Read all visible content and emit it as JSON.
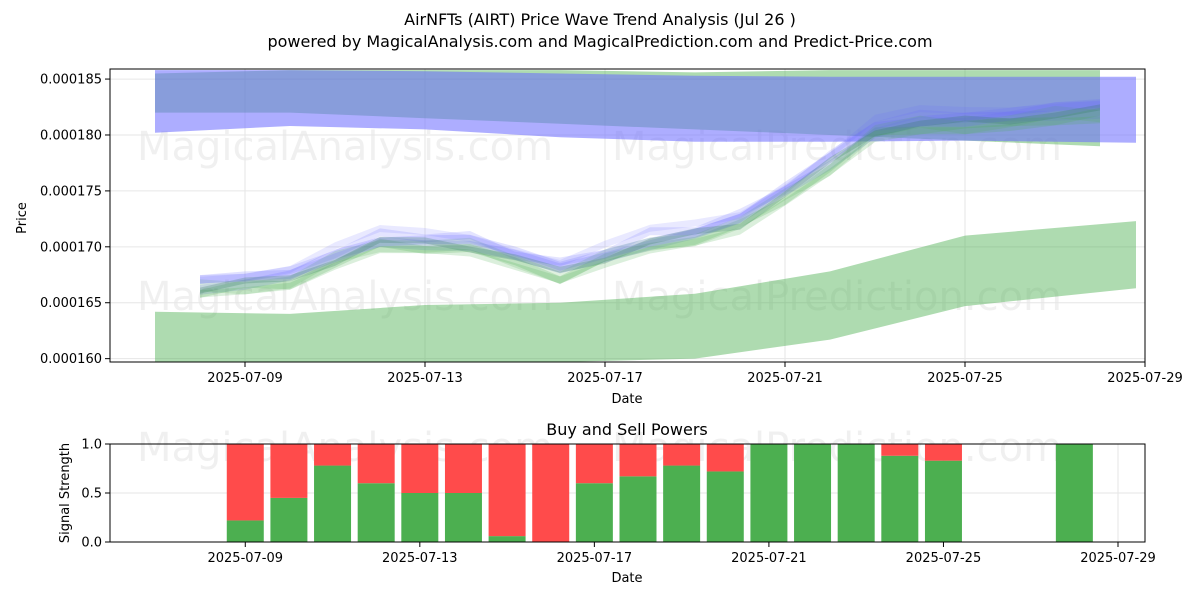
{
  "header": {
    "title": "AirNFTs (AIRT) Price Wave Trend Analysis (Jul 26 )",
    "subtitle": "powered by MagicalAnalysis.com and MagicalPrediction.com and Predict-Price.com"
  },
  "watermarks": [
    "MagicalAnalysis.com",
    "MagicalPrediction.com"
  ],
  "colors": {
    "green_band": "#4caf50",
    "blue_band": "#6a6aff",
    "bands_overlap": "#6f8fc6",
    "buy_bar": "#4caf50",
    "sell_bar": "#ff4b4b",
    "grid": "#e6e6e6"
  },
  "chart_data": [
    {
      "type": "area",
      "title": "",
      "xlabel": "Date",
      "ylabel": "Price",
      "x_range": [
        "2025-07-06",
        "2025-07-29"
      ],
      "ylim": [
        0.0001597,
        0.0001859
      ],
      "x_ticks": [
        "2025-07-09",
        "2025-07-13",
        "2025-07-17",
        "2025-07-21",
        "2025-07-25",
        "2025-07-29"
      ],
      "y_ticks": [
        "0.000160",
        "0.000165",
        "0.000170",
        "0.000175",
        "0.000180",
        "0.000185"
      ],
      "grid": true,
      "series": [
        {
          "kind": "band",
          "color": "green",
          "x": [
            "2025-07-07",
            "2025-07-10",
            "2025-07-13",
            "2025-07-16",
            "2025-07-19",
            "2025-07-22",
            "2025-07-25",
            "2025-07-28"
          ],
          "upper": [
            0.0001855,
            0.0001858,
            0.0001858,
            0.0001858,
            0.0001856,
            0.0001858,
            0.0001858,
            0.0001858
          ],
          "lower": [
            0.000182,
            0.000182,
            0.0001815,
            0.000181,
            0.0001805,
            0.00018,
            0.0001795,
            0.000179
          ]
        },
        {
          "kind": "band",
          "color": "blue",
          "x": [
            "2025-07-07",
            "2025-07-10",
            "2025-07-13",
            "2025-07-16",
            "2025-07-19",
            "2025-07-22",
            "2025-07-25",
            "2025-07-28.8"
          ],
          "upper": [
            0.0001858,
            0.0001858,
            0.0001857,
            0.0001855,
            0.0001853,
            0.0001852,
            0.0001852,
            0.0001852
          ],
          "lower": [
            0.0001802,
            0.0001808,
            0.0001805,
            0.0001798,
            0.0001794,
            0.0001794,
            0.0001795,
            0.0001793
          ]
        },
        {
          "kind": "band",
          "color": "green",
          "x": [
            "2025-07-07",
            "2025-07-10",
            "2025-07-13",
            "2025-07-16",
            "2025-07-19",
            "2025-07-22",
            "2025-07-25",
            "2025-07-28.8"
          ],
          "upper": [
            0.0001642,
            0.000164,
            0.0001648,
            0.000165,
            0.0001658,
            0.0001678,
            0.000171,
            0.0001723
          ],
          "lower": [
            0.0001597,
            0.0001597,
            0.0001597,
            0.0001597,
            0.00016,
            0.0001617,
            0.0001647,
            0.0001663
          ]
        },
        {
          "kind": "price_waves",
          "x": [
            "2025-07-08",
            "2025-07-09",
            "2025-07-10",
            "2025-07-11",
            "2025-07-12",
            "2025-07-13",
            "2025-07-14",
            "2025-07-15",
            "2025-07-16",
            "2025-07-17",
            "2025-07-18",
            "2025-07-19",
            "2025-07-20",
            "2025-07-21",
            "2025-07-22",
            "2025-07-23",
            "2025-07-24",
            "2025-07-25",
            "2025-07-26",
            "2025-07-27",
            "2025-07-28"
          ],
          "values": [
            0.0001665,
            0.0001668,
            0.0001672,
            0.000169,
            0.0001705,
            0.0001705,
            0.0001702,
            0.000169,
            0.0001678,
            0.0001692,
            0.0001705,
            0.0001712,
            0.0001722,
            0.0001748,
            0.0001775,
            0.0001805,
            0.0001812,
            0.0001812,
            0.0001815,
            0.000182,
            0.0001822
          ]
        }
      ]
    },
    {
      "type": "bar",
      "title": "Buy and Sell Powers",
      "xlabel": "Date",
      "ylabel": "Signal Strength",
      "ylim": [
        0,
        1
      ],
      "y_ticks": [
        "0.0",
        "0.5",
        "1.0"
      ],
      "x_range": [
        "2025-07-07",
        "2025-07-29"
      ],
      "x_ticks": [
        "2025-07-09",
        "2025-07-13",
        "2025-07-17",
        "2025-07-21",
        "2025-07-25",
        "2025-07-29"
      ],
      "grid": true,
      "dates": [
        "2025-07-09",
        "2025-07-10",
        "2025-07-11",
        "2025-07-12",
        "2025-07-13",
        "2025-07-14",
        "2025-07-15",
        "2025-07-16",
        "2025-07-17",
        "2025-07-18",
        "2025-07-19",
        "2025-07-20",
        "2025-07-21",
        "2025-07-22",
        "2025-07-23",
        "2025-07-24",
        "2025-07-25",
        "2025-07-28"
      ],
      "series": [
        {
          "name": "Buy",
          "values": [
            0.22,
            0.45,
            0.78,
            0.6,
            0.5,
            0.5,
            0.06,
            0.0,
            0.6,
            0.67,
            0.78,
            0.72,
            1.0,
            1.0,
            1.0,
            0.88,
            0.83,
            1.0
          ]
        },
        {
          "name": "Sell",
          "values": [
            0.78,
            0.55,
            0.22,
            0.4,
            0.5,
            0.5,
            0.94,
            1.0,
            0.4,
            0.33,
            0.22,
            0.28,
            0.0,
            0.0,
            0.0,
            0.12,
            0.17,
            0.0
          ]
        }
      ]
    }
  ]
}
